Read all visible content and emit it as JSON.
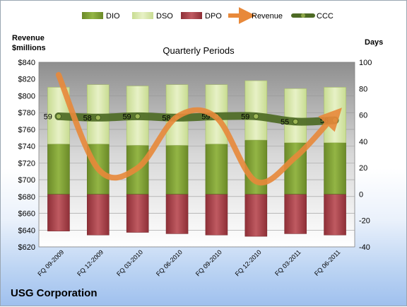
{
  "chart_data": {
    "type": "bar",
    "title": "Quarterly Periods",
    "footer": "USG Corporation",
    "left_axis_label_line1": "Revenue",
    "left_axis_label_line2": "$millions",
    "right_axis_label": "Days",
    "categories": [
      "FQ 09-2009",
      "FQ 12-2009",
      "FQ 03-2010",
      "FQ 06-2010",
      "FQ 09-2010",
      "FQ 12-2010",
      "FQ 03-2011",
      "FQ 06-2011"
    ],
    "left_axis": {
      "min": 620,
      "max": 840,
      "step": 20,
      "prefix": "$"
    },
    "right_axis": {
      "min": -40,
      "max": 100,
      "step": 20
    },
    "series": [
      {
        "name": "DIO",
        "type": "stacked-bar",
        "axis": "right",
        "color": "#7a9a32",
        "values": [
          38,
          38,
          37,
          37,
          38,
          41,
          39,
          39
        ]
      },
      {
        "name": "DSO",
        "type": "stacked-bar",
        "axis": "right",
        "color": "#d6e6a6",
        "values": [
          43,
          45,
          45,
          46,
          45,
          45,
          41,
          42
        ]
      },
      {
        "name": "DPO",
        "type": "negative-bar",
        "axis": "right",
        "color": "#a64048",
        "values": [
          -28,
          -31,
          -29,
          -30,
          -31,
          -32,
          -30,
          -31
        ]
      },
      {
        "name": "Revenue",
        "type": "line",
        "axis": "left",
        "color": "#e8893a",
        "values": [
          825,
          713,
          714,
          775,
          774,
          698,
          727,
          777
        ]
      },
      {
        "name": "CCC",
        "type": "line",
        "axis": "right",
        "color": "#4d6a24",
        "values": [
          59,
          58,
          59,
          58,
          59,
          59,
          55,
          56
        ]
      }
    ]
  }
}
